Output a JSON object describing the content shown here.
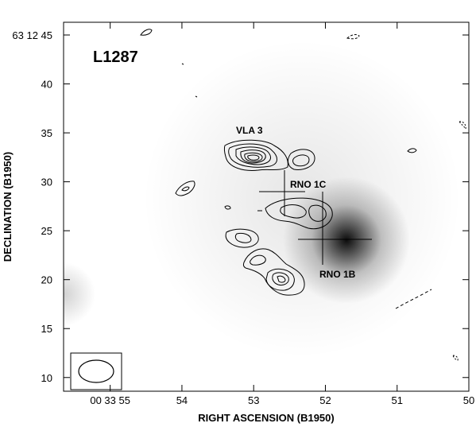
{
  "figure": {
    "field_label": "L1287",
    "x_axis_title": "RIGHT ASCENSION (B1950)",
    "y_axis_title": "DECLINATION (B1950)",
    "x_ticks": [
      {
        "value": 55,
        "label": "00 33 55"
      },
      {
        "value": 54,
        "label": "54"
      },
      {
        "value": 53,
        "label": "53"
      },
      {
        "value": 52,
        "label": "52"
      },
      {
        "value": 51,
        "label": "51"
      },
      {
        "value": 50,
        "label": "50"
      }
    ],
    "y_ticks": [
      {
        "value": 45,
        "label": "63 12 45"
      },
      {
        "value": 40,
        "label": "40"
      },
      {
        "value": 35,
        "label": "35"
      },
      {
        "value": 30,
        "label": "30"
      },
      {
        "value": 25,
        "label": "25"
      },
      {
        "value": 20,
        "label": "20"
      },
      {
        "value": 15,
        "label": "15"
      },
      {
        "value": 10,
        "label": "10"
      }
    ],
    "sources": [
      {
        "id": "vla3",
        "label": "VLA 3",
        "ra": 53.1,
        "dec": 32.3
      },
      {
        "id": "rno1c",
        "label": "RNO 1C",
        "ra": 52.65,
        "dec": 28.7
      },
      {
        "id": "rno1b",
        "label": "RNO 1B",
        "ra": 52.1,
        "dec": 24.0
      }
    ]
  }
}
